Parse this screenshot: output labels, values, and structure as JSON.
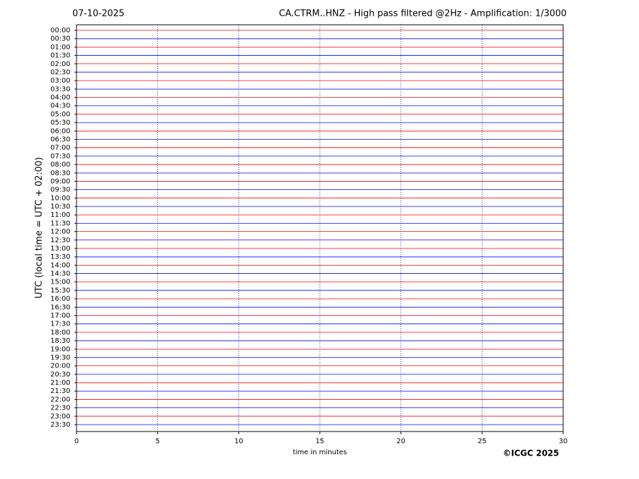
{
  "chart_data": {
    "type": "helicorder",
    "date": "07-10-2025",
    "title": "CA.CTRM..HNZ - High pass filtered @2Hz - Amplification: 1/3000",
    "y_label": "UTC (local time = UTC + 02:00)",
    "x_label": "time in minutes",
    "credit": "©ICGC 2025",
    "categories": [
      "00:00",
      "00:30",
      "01:00",
      "01:30",
      "02:00",
      "02:30",
      "03:00",
      "03:30",
      "04:00",
      "04:30",
      "05:00",
      "05:30",
      "06:00",
      "06:30",
      "07:00",
      "07:30",
      "08:00",
      "08:30",
      "09:00",
      "09:30",
      "10:00",
      "10:30",
      "11:00",
      "11:30",
      "12:00",
      "12:30",
      "13:00",
      "13:30",
      "14:00",
      "14:30",
      "15:00",
      "15:30",
      "16:00",
      "16:30",
      "17:00",
      "17:30",
      "18:00",
      "18:30",
      "19:00",
      "19:30",
      "20:00",
      "20:30",
      "21:00",
      "21:30",
      "22:00",
      "22:30",
      "23:00",
      "23:30"
    ],
    "trace_colors": [
      "#ff0000",
      "#0000ff"
    ],
    "xlim": [
      0,
      30
    ],
    "xticks": [
      0,
      5,
      10,
      15,
      20,
      25,
      30
    ],
    "grid": true
  }
}
